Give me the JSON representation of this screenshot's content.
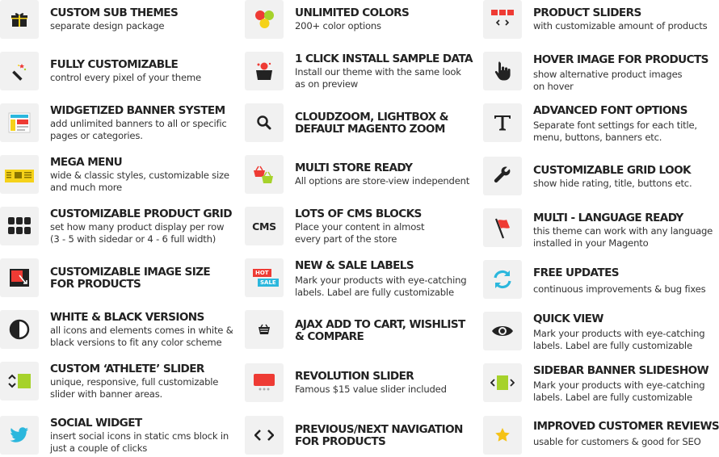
{
  "colors": {
    "accent_red": "#ee3b34",
    "accent_lime": "#a6d22b",
    "accent_cyan": "#2bb7dd",
    "accent_yellow": "#f5d21a",
    "icon_bg": "#f1f1f1"
  },
  "columns": [
    [
      {
        "icon": "gift-icon",
        "title": "CUSTOM SUB THEMES",
        "desc": [
          "separate design package"
        ]
      },
      {
        "icon": "magic-wand-icon",
        "title": "FULLY CUSTOMIZABLE",
        "desc": [
          "control every pixel of your theme"
        ]
      },
      {
        "icon": "banner-layout-icon",
        "title": "WIDGETIZED BANNER SYSTEM",
        "desc": [
          "add unlimited banners to all or specific",
          "pages or categories."
        ]
      },
      {
        "icon": "mega-menu-icon",
        "title": "MEGA MENU",
        "desc": [
          "wide & classic styles, customizable size",
          "and much more"
        ]
      },
      {
        "icon": "product-grid-icon",
        "title": "CUSTOMIZABLE PRODUCT GRID",
        "desc": [
          "set how many product display per row",
          "(3 - 5 with sidedar or 4 - 6 full width)"
        ]
      },
      {
        "icon": "image-resize-icon",
        "title": "CUSTOMIZABLE IMAGE SIZE",
        "title2": "FOR PRODUCTS",
        "desc": []
      },
      {
        "icon": "contrast-icon",
        "title": "WHITE & BLACK VERSIONS",
        "desc": [
          "all icons and elements comes in white &",
          "black versions to fit any color scheme"
        ]
      },
      {
        "icon": "slider-arrows-icon",
        "title": "CUSTOM ‘ATHLETE’ SLIDER",
        "desc": [
          "unique, responsive, full customizable",
          "slider with banner areas."
        ]
      },
      {
        "icon": "twitter-bird-icon",
        "title": "SOCIAL WIDGET",
        "desc": [
          "insert social icons in static cms block in",
          "just a couple of clicks"
        ]
      }
    ],
    [
      {
        "icon": "color-dots-icon",
        "title": "UNLIMITED COLORS",
        "desc": [
          "200+ color options"
        ]
      },
      {
        "icon": "sample-data-icon",
        "title": "1 CLICK INSTALL SAMPLE DATA",
        "desc": [
          "Install our theme with the same look",
          "as on preview"
        ]
      },
      {
        "icon": "search-zoom-icon",
        "title": "CLOUDZOOM, LIGHTBOX &",
        "title2": "DEFAULT MAGENTO ZOOM",
        "desc": []
      },
      {
        "icon": "multi-store-baskets-icon",
        "title": "MULTI STORE READY",
        "desc": [
          "All options are store-view independent"
        ]
      },
      {
        "icon": "cms-text-icon",
        "icon_text": "CMS",
        "title": "LOTS OF CMS BLOCKS",
        "desc": [
          "Place your content in almost",
          "every part of the store"
        ]
      },
      {
        "icon": "hot-sale-labels-icon",
        "icon_text": "HOT",
        "icon_text2": "SALE",
        "title": "NEW & SALE LABELS",
        "desc": [
          "Mark your products with eye-catching",
          "labels. Label are fully customizable"
        ]
      },
      {
        "icon": "basket-icon",
        "title": "AJAX ADD TO CART, WISHLIST",
        "title2": "& COMPARE",
        "desc": []
      },
      {
        "icon": "revolution-slider-icon",
        "title": "REVOLUTION SLIDER",
        "desc": [
          "Famous $15 value slider included"
        ]
      },
      {
        "icon": "code-brackets-icon",
        "title": "PREVIOUS/NEXT NAVIGATION",
        "title2": "FOR PRODUCTS",
        "desc": []
      }
    ],
    [
      {
        "icon": "product-slider-icon",
        "title": "PRODUCT SLIDERS",
        "desc": [
          "with customizable amount of products"
        ]
      },
      {
        "icon": "hand-pointer-icon",
        "title": "HOVER IMAGE FOR PRODUCTS",
        "desc": [
          "show alternative product images",
          "on hover"
        ]
      },
      {
        "icon": "font-t-icon",
        "title": "ADVANCED FONT OPTIONS",
        "desc": [
          "Separate font settings for each title,",
          "menu, buttons, banners etc."
        ]
      },
      {
        "icon": "wrench-icon",
        "title": "CUSTOMIZABLE GRID LOOK",
        "desc": [
          "show hide rating, title, buttons etc."
        ]
      },
      {
        "icon": "flag-icon",
        "title": "MULTI - LANGUAGE READY",
        "desc": [
          "this theme can work with any language",
          "installed in your Magento"
        ]
      },
      {
        "icon": "refresh-arrows-icon",
        "title": "FREE UPDATES",
        "desc": [
          "continuous improvements & bug fixes"
        ]
      },
      {
        "icon": "eye-icon",
        "title": "QUICK VIEW",
        "desc": [
          "Mark your products with eye-catching",
          "labels. Label are fully customizable"
        ]
      },
      {
        "icon": "sidebar-slideshow-icon",
        "title": "SIDEBAR BANNER SLIDESHOW",
        "desc": [
          "Mark your products with eye-catching",
          "labels. Label are fully customizable"
        ]
      },
      {
        "icon": "star-icon",
        "title": "IMPROVED CUSTOMER REVIEWS",
        "desc": [
          "usable for customers & good for SEO"
        ]
      }
    ]
  ]
}
